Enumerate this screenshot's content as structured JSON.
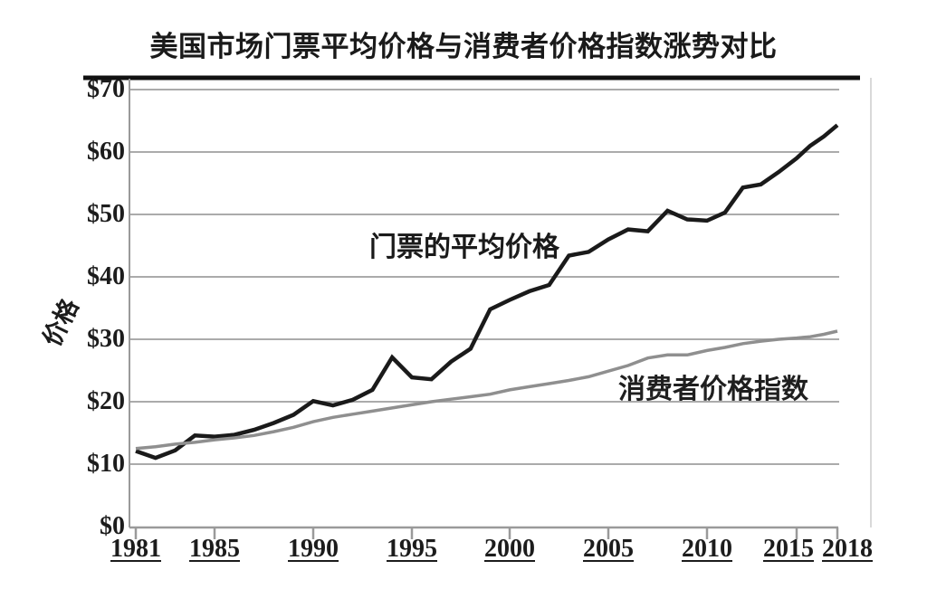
{
  "title": "美国市场门票平均价格与消费者价格指数涨势对比",
  "chart_data": {
    "type": "line",
    "title": "美国市场门票平均价格与消费者价格指数涨势对比",
    "xlabel": "",
    "ylabel": "价格",
    "xlim": [
      1981,
      2018
    ],
    "ylim": [
      0,
      70
    ],
    "grid": true,
    "x_tick_years": [
      1981,
      1985,
      1990,
      1995,
      2000,
      2005,
      2010,
      2015,
      2018
    ],
    "x_tick_labels": [
      "1981",
      "1985",
      "1990",
      "1995",
      "2000",
      "2005",
      "2010",
      "2015",
      "2018"
    ],
    "y_ticks": [
      0,
      10,
      20,
      30,
      40,
      50,
      60,
      70
    ],
    "y_tick_labels": [
      "$0",
      "$10",
      "$20",
      "$30",
      "$40",
      "$50",
      "$60",
      "$70"
    ],
    "years": [
      1981,
      1982,
      1983,
      1984,
      1985,
      1986,
      1987,
      1988,
      1989,
      1990,
      1991,
      1992,
      1993,
      1994,
      1995,
      1996,
      1997,
      1998,
      1999,
      2000,
      2001,
      2002,
      2003,
      2004,
      2005,
      2006,
      2007,
      2008,
      2009,
      2010,
      2011,
      2012,
      2013,
      2014,
      2015,
      2016,
      2017,
      2018
    ],
    "series": [
      {
        "name": "门票的平均价格",
        "color": "#1a1a1a",
        "values": [
          12.1,
          11.0,
          12.2,
          14.6,
          14.4,
          14.7,
          15.5,
          16.6,
          17.9,
          20.1,
          19.4,
          20.3,
          21.9,
          27.1,
          23.9,
          23.6,
          26.4,
          28.5,
          34.8,
          36.3,
          37.7,
          38.7,
          43.4,
          44.0,
          46.0,
          47.6,
          47.3,
          50.6,
          49.2,
          49.0,
          50.3,
          54.3,
          54.8,
          56.8,
          59.0,
          61.0,
          62.5,
          64.3
        ]
      },
      {
        "name": "消费者价格指数",
        "color": "#8f8f8f",
        "values": [
          12.5,
          12.8,
          13.2,
          13.5,
          13.9,
          14.2,
          14.6,
          15.2,
          15.9,
          16.8,
          17.5,
          18.0,
          18.5,
          19.0,
          19.5,
          20.0,
          20.4,
          20.8,
          21.2,
          21.9,
          22.4,
          22.9,
          23.4,
          24.0,
          24.9,
          25.8,
          27.0,
          27.5,
          27.5,
          28.2,
          28.7,
          29.3,
          29.7,
          30.0,
          30.2,
          30.4,
          30.8,
          31.3
        ]
      }
    ],
    "colors": {
      "ticket_line": "#1a1a1a",
      "cpi_line": "#8f8f8f",
      "gridline": "#ababab",
      "axis": "#9a9a9a",
      "top_border": "#111111",
      "right_border": "#d9d9d9",
      "background": "#ffffff"
    }
  }
}
